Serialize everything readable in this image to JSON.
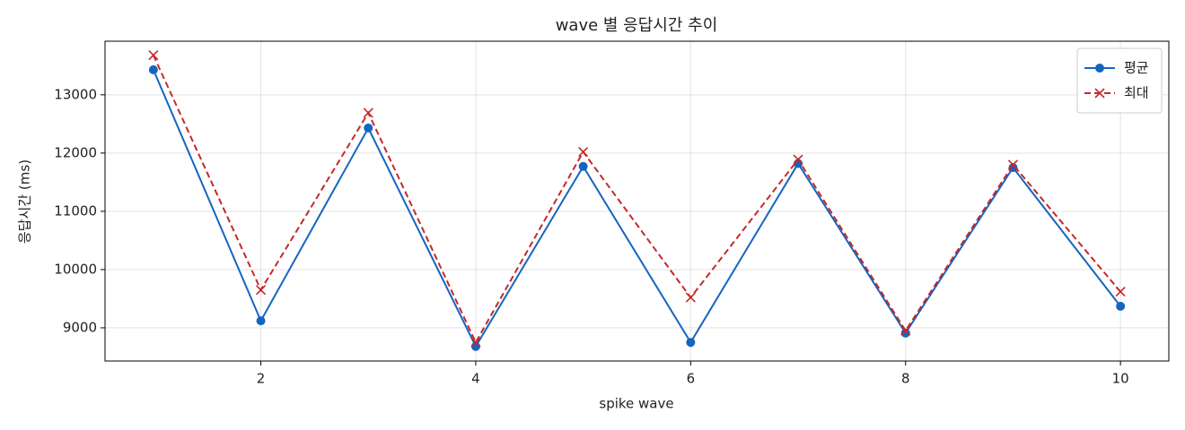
{
  "chart_data": {
    "type": "line",
    "title": "wave 별 응답시간 추이",
    "x_label": "spike wave",
    "y_label": "응답시간 (ms)",
    "x": [
      1,
      2,
      3,
      4,
      5,
      6,
      7,
      8,
      9,
      10
    ],
    "series": [
      {
        "name": "평균",
        "color": "#1565c0",
        "marker": "o",
        "linestyle": "solid",
        "values": [
          13430,
          9120,
          12430,
          8680,
          11770,
          8750,
          11820,
          8910,
          11750,
          9370
        ]
      },
      {
        "name": "최대",
        "color": "#c62828",
        "marker": "x",
        "linestyle": "dashed",
        "values": [
          13680,
          9650,
          12690,
          8750,
          12020,
          9520,
          11890,
          8950,
          11800,
          9620
        ]
      }
    ],
    "xlim": [
      0.55,
      10.45
    ],
    "ylim": [
      8430,
      13920
    ],
    "xticks": [
      2,
      4,
      6,
      8,
      10
    ],
    "yticks": [
      9000,
      10000,
      11000,
      12000,
      13000
    ],
    "grid": true,
    "legend": "upper right"
  }
}
